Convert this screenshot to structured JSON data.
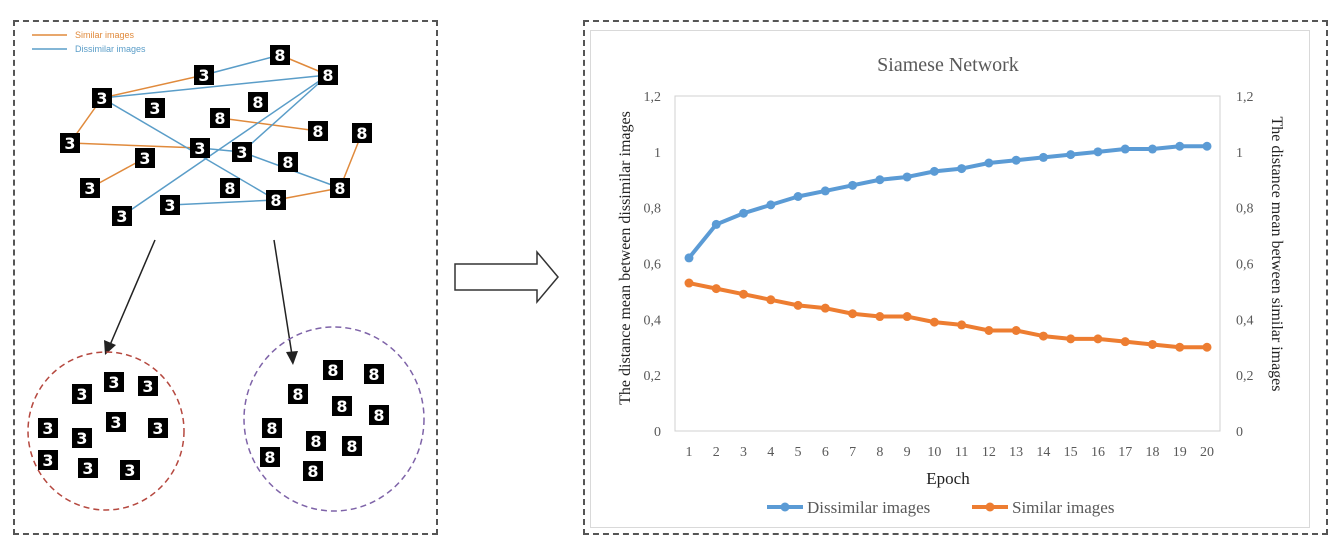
{
  "legend_left": {
    "similar_label": "Similar images",
    "dissimilar_label": "Dissimilar images",
    "similar_color": "#E08A3C",
    "dissimilar_color": "#5A9DC8"
  },
  "digits": {
    "three": "3",
    "eight": "8"
  },
  "chart_data": {
    "type": "line",
    "title": "Siamese Network",
    "xlabel": "Epoch",
    "ylabel_left": "The distance mean between dissimilar images",
    "ylabel_right": "The distance mean between similar images",
    "x": [
      1,
      2,
      3,
      4,
      5,
      6,
      7,
      8,
      9,
      10,
      11,
      12,
      13,
      14,
      15,
      16,
      17,
      18,
      19,
      20
    ],
    "ylim": [
      0,
      1.2
    ],
    "yticks": [
      "0",
      "0,2",
      "0,4",
      "0,6",
      "0,8",
      "1",
      "1,2"
    ],
    "legend_position": "bottom",
    "series": [
      {
        "name": "Dissimilar images",
        "color": "#5B9BD5",
        "values": [
          0.62,
          0.74,
          0.78,
          0.81,
          0.84,
          0.86,
          0.88,
          0.9,
          0.91,
          0.93,
          0.94,
          0.96,
          0.97,
          0.98,
          0.99,
          1.0,
          1.01,
          1.01,
          1.02,
          1.02
        ]
      },
      {
        "name": "Similar images",
        "color": "#ED7D31",
        "values": [
          0.53,
          0.51,
          0.49,
          0.47,
          0.45,
          0.44,
          0.42,
          0.41,
          0.41,
          0.39,
          0.38,
          0.36,
          0.36,
          0.34,
          0.33,
          0.33,
          0.32,
          0.31,
          0.3,
          0.3
        ]
      }
    ]
  }
}
